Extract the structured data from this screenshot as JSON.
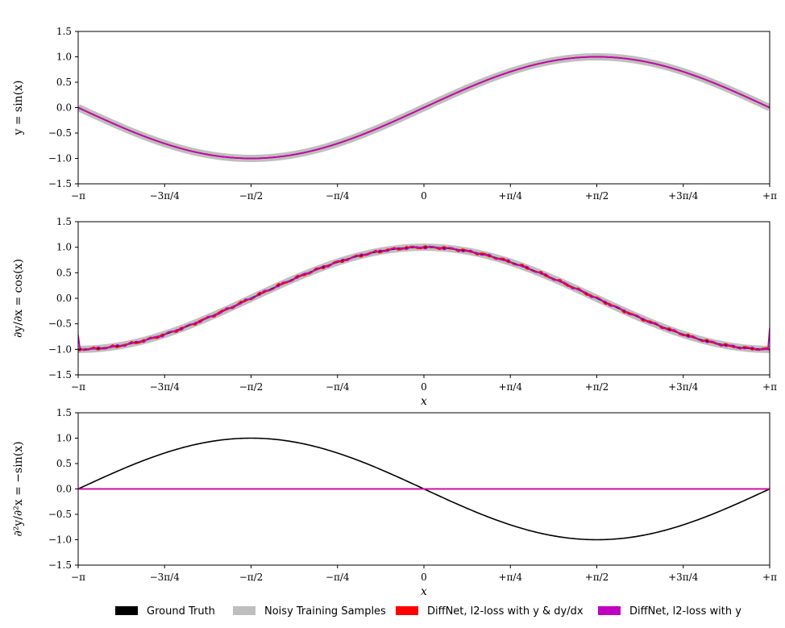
{
  "chart_data": [
    {
      "type": "line",
      "ylabel": "y = sin(x)",
      "xlabel": "",
      "xlim": [
        -3.14159,
        3.14159
      ],
      "ylim": [
        -1.5,
        1.5
      ],
      "yticks": [
        -1.5,
        -1.0,
        -0.5,
        0.0,
        0.5,
        1.0,
        1.5
      ],
      "ytick_labels": [
        "−1.5",
        "−1.0",
        "−0.5",
        "0.0",
        "0.5",
        "1.0",
        "1.5"
      ],
      "xtick_labels": [
        "−π",
        "−3π/4",
        "−π/2",
        "−π/4",
        "0",
        "+π/4",
        "+π/2",
        "+3π/4",
        "+π"
      ],
      "series": [
        {
          "name": "Noisy Training Samples",
          "function": "sin(x)",
          "color": "#bebebe"
        },
        {
          "name": "Ground Truth",
          "function": "sin(x)",
          "color": "#000000"
        },
        {
          "name": "DiffNet, l2-loss with y & dy/dx",
          "function": "sin(x)",
          "color": "#ff0000"
        },
        {
          "name": "DiffNet, l2-loss with y",
          "function": "sin(x)",
          "color": "#c000c0"
        }
      ]
    },
    {
      "type": "line",
      "ylabel": "∂y/∂x = cos(x)",
      "xlabel": "x",
      "xlim": [
        -3.14159,
        3.14159
      ],
      "ylim": [
        -1.5,
        1.5
      ],
      "yticks": [
        -1.5,
        -1.0,
        -0.5,
        0.0,
        0.5,
        1.0,
        1.5
      ],
      "ytick_labels": [
        "−1.5",
        "−1.0",
        "−0.5",
        "0.0",
        "0.5",
        "1.0",
        "1.5"
      ],
      "xtick_labels": [
        "−π",
        "−3π/4",
        "−π/2",
        "−π/4",
        "0",
        "+π/4",
        "+π/2",
        "+3π/4",
        "+π"
      ],
      "series": [
        {
          "name": "Noisy Training Samples",
          "function": "cos(x)",
          "color": "#bebebe"
        },
        {
          "name": "Ground Truth",
          "function": "cos(x)",
          "color": "#000000"
        },
        {
          "name": "DiffNet, l2-loss with y & dy/dx",
          "function": "cos(x) approx",
          "color": "#ff0000"
        },
        {
          "name": "DiffNet, l2-loss with y",
          "function": "cos(x) approx",
          "color": "#c000c0",
          "edge_values": {
            "x_min": -0.72,
            "x_max": -0.58
          }
        }
      ]
    },
    {
      "type": "line",
      "ylabel": "∂²y/∂²x = −sin(x)",
      "xlabel": "x",
      "xlim": [
        -3.14159,
        3.14159
      ],
      "ylim": [
        -1.5,
        1.5
      ],
      "yticks": [
        -1.5,
        -1.0,
        -0.5,
        0.0,
        0.5,
        1.0,
        1.5
      ],
      "ytick_labels": [
        "−1.5",
        "−1.0",
        "−0.5",
        "0.0",
        "0.5",
        "1.0",
        "1.5"
      ],
      "xtick_labels": [
        "−π",
        "−3π/4",
        "−π/2",
        "−π/4",
        "0",
        "+π/4",
        "+π/2",
        "+3π/4",
        "+π"
      ],
      "series": [
        {
          "name": "Ground Truth",
          "function": "-sin(x)",
          "color": "#000000"
        },
        {
          "name": "DiffNet, l2-loss with y & dy/dx",
          "function": "0",
          "color": "#ff0000"
        },
        {
          "name": "DiffNet, l2-loss with y",
          "function": "0",
          "color": "#c000c0"
        }
      ]
    }
  ],
  "legend": {
    "placement": "bottom",
    "items": [
      {
        "label": "Ground Truth",
        "color": "#000000"
      },
      {
        "label": "Noisy Training Samples",
        "color": "#bebebe"
      },
      {
        "label": "DiffNet, l2-loss with y & dy/dx",
        "color": "#ff0000"
      },
      {
        "label": "DiffNet, l2-loss with y",
        "color": "#c000c0"
      }
    ]
  }
}
